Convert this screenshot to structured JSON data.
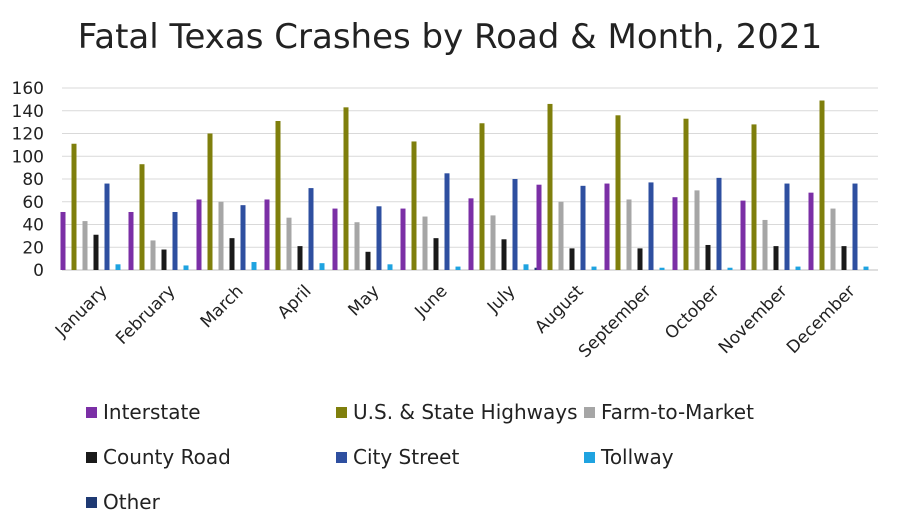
{
  "chart_data": {
    "type": "bar",
    "title": "Fatal Texas Crashes by Road & Month, 2021",
    "xlabel": "",
    "ylabel": "",
    "ylim": [
      0,
      160
    ],
    "yticks": [
      0,
      20,
      40,
      60,
      80,
      100,
      120,
      140,
      160
    ],
    "grid": true,
    "legend_position": "bottom",
    "categories": [
      "January",
      "February",
      "March",
      "April",
      "May",
      "June",
      "July",
      "August",
      "September",
      "October",
      "November",
      "December"
    ],
    "series": [
      {
        "name": "Interstate",
        "color": "#7B2FA6",
        "values": [
          51,
          51,
          62,
          62,
          54,
          54,
          63,
          75,
          76,
          64,
          61,
          68
        ]
      },
      {
        "name": "U.S. & State Highways",
        "color": "#7F7F0C",
        "values": [
          111,
          93,
          120,
          131,
          143,
          113,
          129,
          146,
          136,
          133,
          128,
          149
        ]
      },
      {
        "name": "Farm-to-Market",
        "color": "#A6A6A6",
        "values": [
          43,
          26,
          60,
          46,
          42,
          47,
          48,
          60,
          62,
          70,
          44,
          54
        ]
      },
      {
        "name": "County Road",
        "color": "#1A1A1A",
        "values": [
          31,
          18,
          28,
          21,
          16,
          28,
          27,
          19,
          19,
          22,
          21,
          21
        ]
      },
      {
        "name": "City Street",
        "color": "#2E4FA0",
        "values": [
          76,
          51,
          57,
          72,
          56,
          85,
          80,
          74,
          77,
          81,
          76,
          76
        ]
      },
      {
        "name": "Tollway",
        "color": "#1FA3E0",
        "values": [
          5,
          4,
          7,
          6,
          5,
          3,
          5,
          3,
          2,
          2,
          3,
          3
        ]
      },
      {
        "name": "Other",
        "color": "#1F3A73",
        "values": [
          0,
          0,
          0,
          0,
          0,
          0,
          2,
          0,
          0,
          0,
          0,
          0
        ]
      }
    ]
  }
}
